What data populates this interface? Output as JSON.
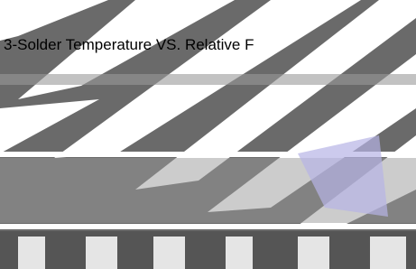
{
  "header": {
    "title": "3-Solder Temperature VS. Relative F"
  }
}
